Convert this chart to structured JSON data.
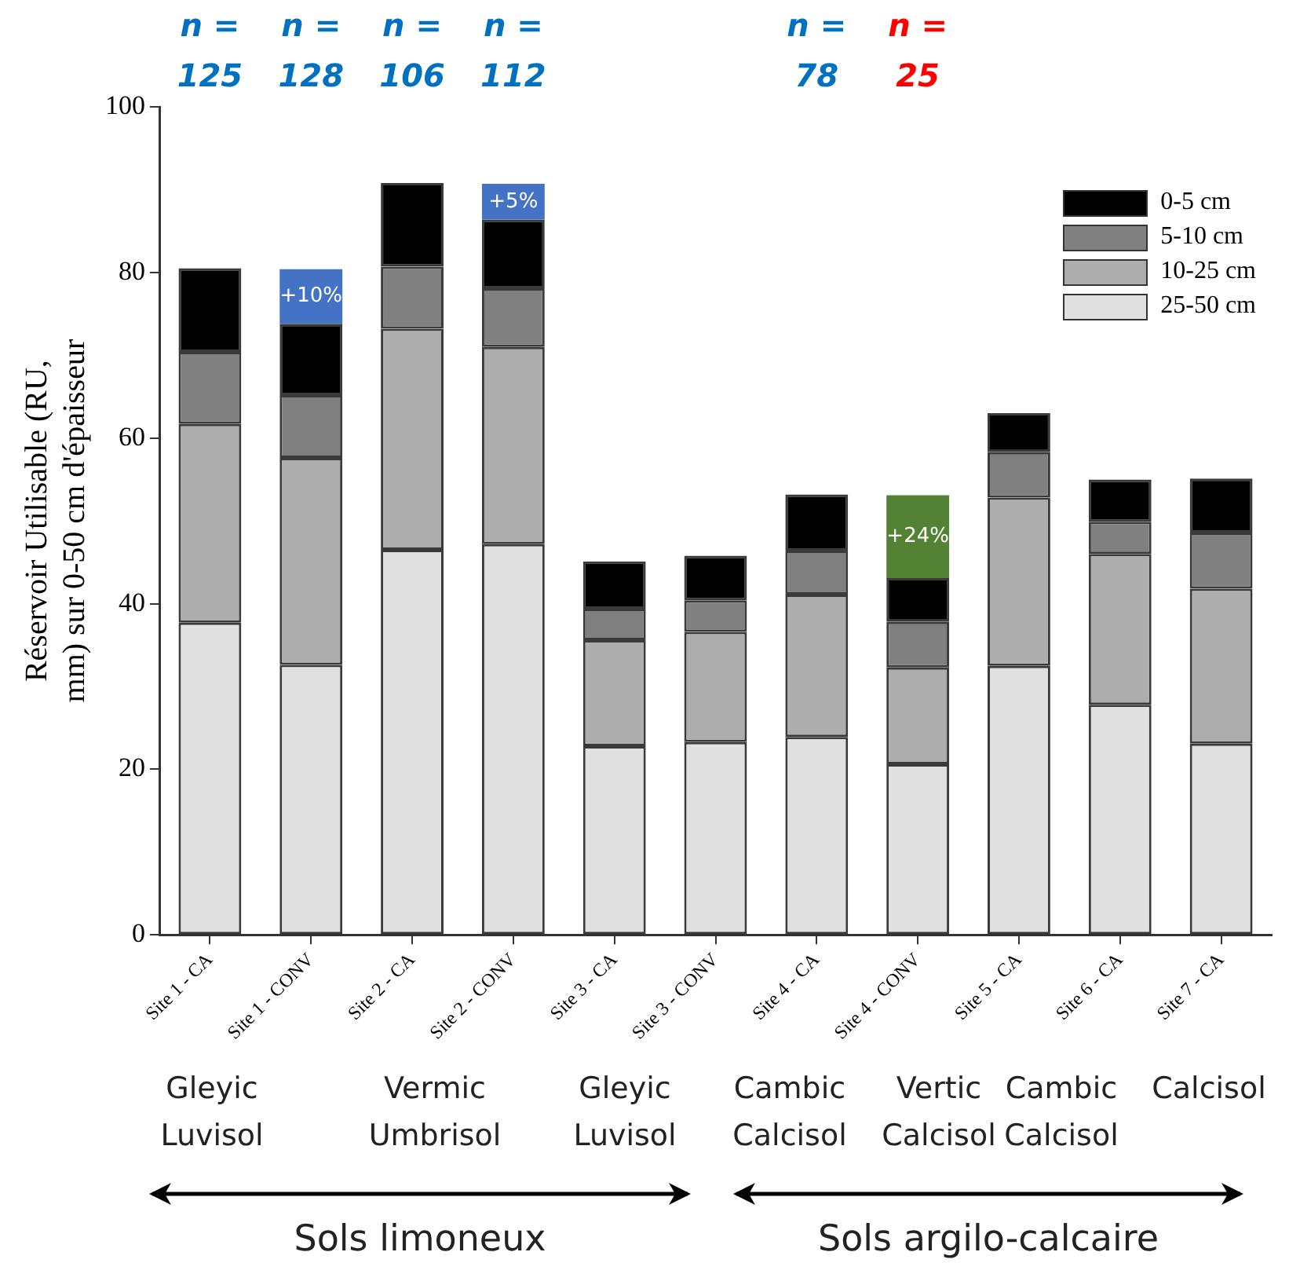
{
  "chart_data": {
    "type": "bar",
    "stacked": true,
    "ylabel": "Réservoir Utilisable (RU, mm) sur 0-50 cm d'épaisseur",
    "categories": [
      "Site 1 - CA",
      "Site 1 - CONV",
      "Site 2 - CA",
      "Site 2 - CONV",
      "Site 3 - CA",
      "Site 3 - CONV",
      "Site 4 - CA",
      "Site 4 - CONV",
      "Site 5 - CA",
      "Site 6 - CA",
      "Site 7 - CA"
    ],
    "series": [
      {
        "name": "25-50 cm",
        "color": "#e0e0e0",
        "values": [
          37.7,
          32.6,
          46.5,
          47.2,
          22.8,
          23.3,
          23.9,
          20.6,
          32.5,
          27.8,
          23.1
        ]
      },
      {
        "name": "10-25 cm",
        "color": "#adadad",
        "values": [
          24.0,
          25.0,
          26.7,
          23.8,
          12.8,
          13.3,
          17.2,
          11.7,
          20.3,
          18.2,
          18.7
        ]
      },
      {
        "name": "5-10 cm",
        "color": "#808080",
        "values": [
          8.7,
          7.6,
          7.5,
          7.1,
          3.8,
          3.8,
          5.3,
          5.5,
          5.5,
          3.9,
          6.8
        ]
      },
      {
        "name": "0-5 cm",
        "color": "#000000",
        "values": [
          10.1,
          8.6,
          10.1,
          8.3,
          5.7,
          5.4,
          6.8,
          5.3,
          4.7,
          5.1,
          6.5
        ]
      },
      {
        "colors": [
          null,
          "#4472c4",
          null,
          "#4472c4",
          null,
          null,
          null,
          "#548235",
          null,
          null,
          null
        ],
        "values": [
          null,
          6.6,
          null,
          4.3,
          null,
          null,
          null,
          10.0,
          null,
          null,
          null
        ]
      }
    ],
    "ylim": [
      0,
      100
    ],
    "yticks": [
      0,
      20,
      40,
      60,
      80,
      100
    ],
    "grid": false,
    "legend": "top right",
    "annotations": [
      {
        "text": "+10%",
        "x": "Site 1 - CONV",
        "y": 77.1
      },
      {
        "text": "+5%",
        "x": "Site 2 - CONV",
        "y": 88.5
      },
      {
        "text": "+24%",
        "x": "Site 4 - CONV",
        "y": 48.1
      },
      "n = 125",
      "n = 128",
      "n = 106",
      "n = 112",
      "n = 78",
      "n = 25",
      "Gleyic Luvisol",
      "Vermic Umbrisol",
      "Gleyic Luvisol",
      "Cambic Calcisol",
      "Vertic Calcisol",
      "Cambic Calcisol",
      "Calcisol",
      "Sols limoneux",
      "Sols argilo-calcaire"
    ]
  }
}
